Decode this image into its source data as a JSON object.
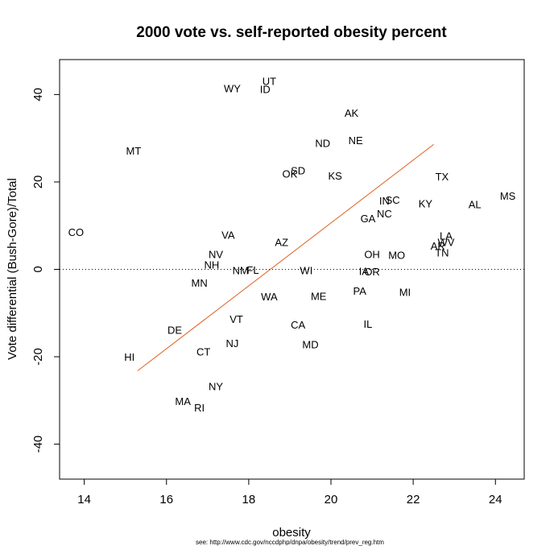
{
  "chart_data": {
    "type": "scatter",
    "title": "2000 vote vs. self-reported obesity percent",
    "xlabel": "obesity",
    "ylabel": "Vote differential (Bush-Gore)/Total",
    "xlim": [
      13.4,
      24.7
    ],
    "ylim": [
      -48,
      48
    ],
    "xticks": [
      14,
      16,
      18,
      20,
      22,
      24
    ],
    "yticks": [
      -40,
      -20,
      0,
      20,
      40
    ],
    "grid": false,
    "reference_line": {
      "y": 0,
      "style": "dotted"
    },
    "fit_line": {
      "x": [
        15.3,
        22.5
      ],
      "y": [
        -23.2,
        28.6
      ],
      "color": "#e06020"
    },
    "note": "see: http://www.cdc.gov/nccdphp/dnpa/obesity/trend/prev_reg.htm",
    "points": [
      {
        "label": "CO",
        "x": 13.8,
        "y": 8.6
      },
      {
        "label": "MT",
        "x": 15.2,
        "y": 27.2
      },
      {
        "label": "HI",
        "x": 15.1,
        "y": -20.0
      },
      {
        "label": "MA",
        "x": 16.4,
        "y": -30.1
      },
      {
        "label": "RI",
        "x": 16.8,
        "y": -31.6
      },
      {
        "label": "DE",
        "x": 16.2,
        "y": -13.8
      },
      {
        "label": "CT",
        "x": 16.9,
        "y": -18.8
      },
      {
        "label": "MN",
        "x": 16.8,
        "y": -3.0
      },
      {
        "label": "NH",
        "x": 17.1,
        "y": 1.1
      },
      {
        "label": "NV",
        "x": 17.2,
        "y": 3.5
      },
      {
        "label": "VA",
        "x": 17.5,
        "y": 7.9
      },
      {
        "label": "NY",
        "x": 17.2,
        "y": -26.7
      },
      {
        "label": "NJ",
        "x": 17.6,
        "y": -16.9
      },
      {
        "label": "VT",
        "x": 17.7,
        "y": -11.3
      },
      {
        "label": "NM",
        "x": 17.8,
        "y": -0.2
      },
      {
        "label": "FL",
        "x": 18.1,
        "y": -0.1
      },
      {
        "label": "WY",
        "x": 17.6,
        "y": 41.5
      },
      {
        "label": "UT",
        "x": 18.5,
        "y": 43.1
      },
      {
        "label": "ID",
        "x": 18.4,
        "y": 41.3
      },
      {
        "label": "WA",
        "x": 18.5,
        "y": -6.2
      },
      {
        "label": "AZ",
        "x": 18.8,
        "y": 6.3
      },
      {
        "label": "OK",
        "x": 19.0,
        "y": 21.9
      },
      {
        "label": "SD",
        "x": 19.2,
        "y": 22.7
      },
      {
        "label": "CA",
        "x": 19.2,
        "y": -12.6
      },
      {
        "label": "WI",
        "x": 19.4,
        "y": -0.2
      },
      {
        "label": "MD",
        "x": 19.5,
        "y": -17.1
      },
      {
        "label": "ME",
        "x": 19.7,
        "y": -6.1
      },
      {
        "label": "ND",
        "x": 19.8,
        "y": 28.9
      },
      {
        "label": "KS",
        "x": 20.1,
        "y": 21.5
      },
      {
        "label": "AK",
        "x": 20.5,
        "y": 35.8
      },
      {
        "label": "NE",
        "x": 20.6,
        "y": 29.6
      },
      {
        "label": "PA",
        "x": 20.7,
        "y": -4.9
      },
      {
        "label": "IA",
        "x": 20.8,
        "y": -0.4
      },
      {
        "label": "IL",
        "x": 20.9,
        "y": -12.4
      },
      {
        "label": "OH",
        "x": 21.0,
        "y": 3.5
      },
      {
        "label": "OR",
        "x": 21.0,
        "y": -0.5
      },
      {
        "label": "GA",
        "x": 20.9,
        "y": 11.7
      },
      {
        "label": "NC",
        "x": 21.3,
        "y": 12.8
      },
      {
        "label": "IN",
        "x": 21.3,
        "y": 15.8
      },
      {
        "label": "SC",
        "x": 21.5,
        "y": 15.9
      },
      {
        "label": "MO",
        "x": 21.6,
        "y": 3.3
      },
      {
        "label": "MI",
        "x": 21.8,
        "y": -5.2
      },
      {
        "label": "KY",
        "x": 22.3,
        "y": 15.1
      },
      {
        "label": "TX",
        "x": 22.7,
        "y": 21.3
      },
      {
        "label": "LA",
        "x": 22.8,
        "y": 7.7
      },
      {
        "label": "WV",
        "x": 22.8,
        "y": 6.3
      },
      {
        "label": "AR",
        "x": 22.6,
        "y": 5.4
      },
      {
        "label": "TN",
        "x": 22.7,
        "y": 3.9
      },
      {
        "label": "AL",
        "x": 23.5,
        "y": 14.9
      },
      {
        "label": "MS",
        "x": 24.3,
        "y": 16.9
      }
    ]
  }
}
